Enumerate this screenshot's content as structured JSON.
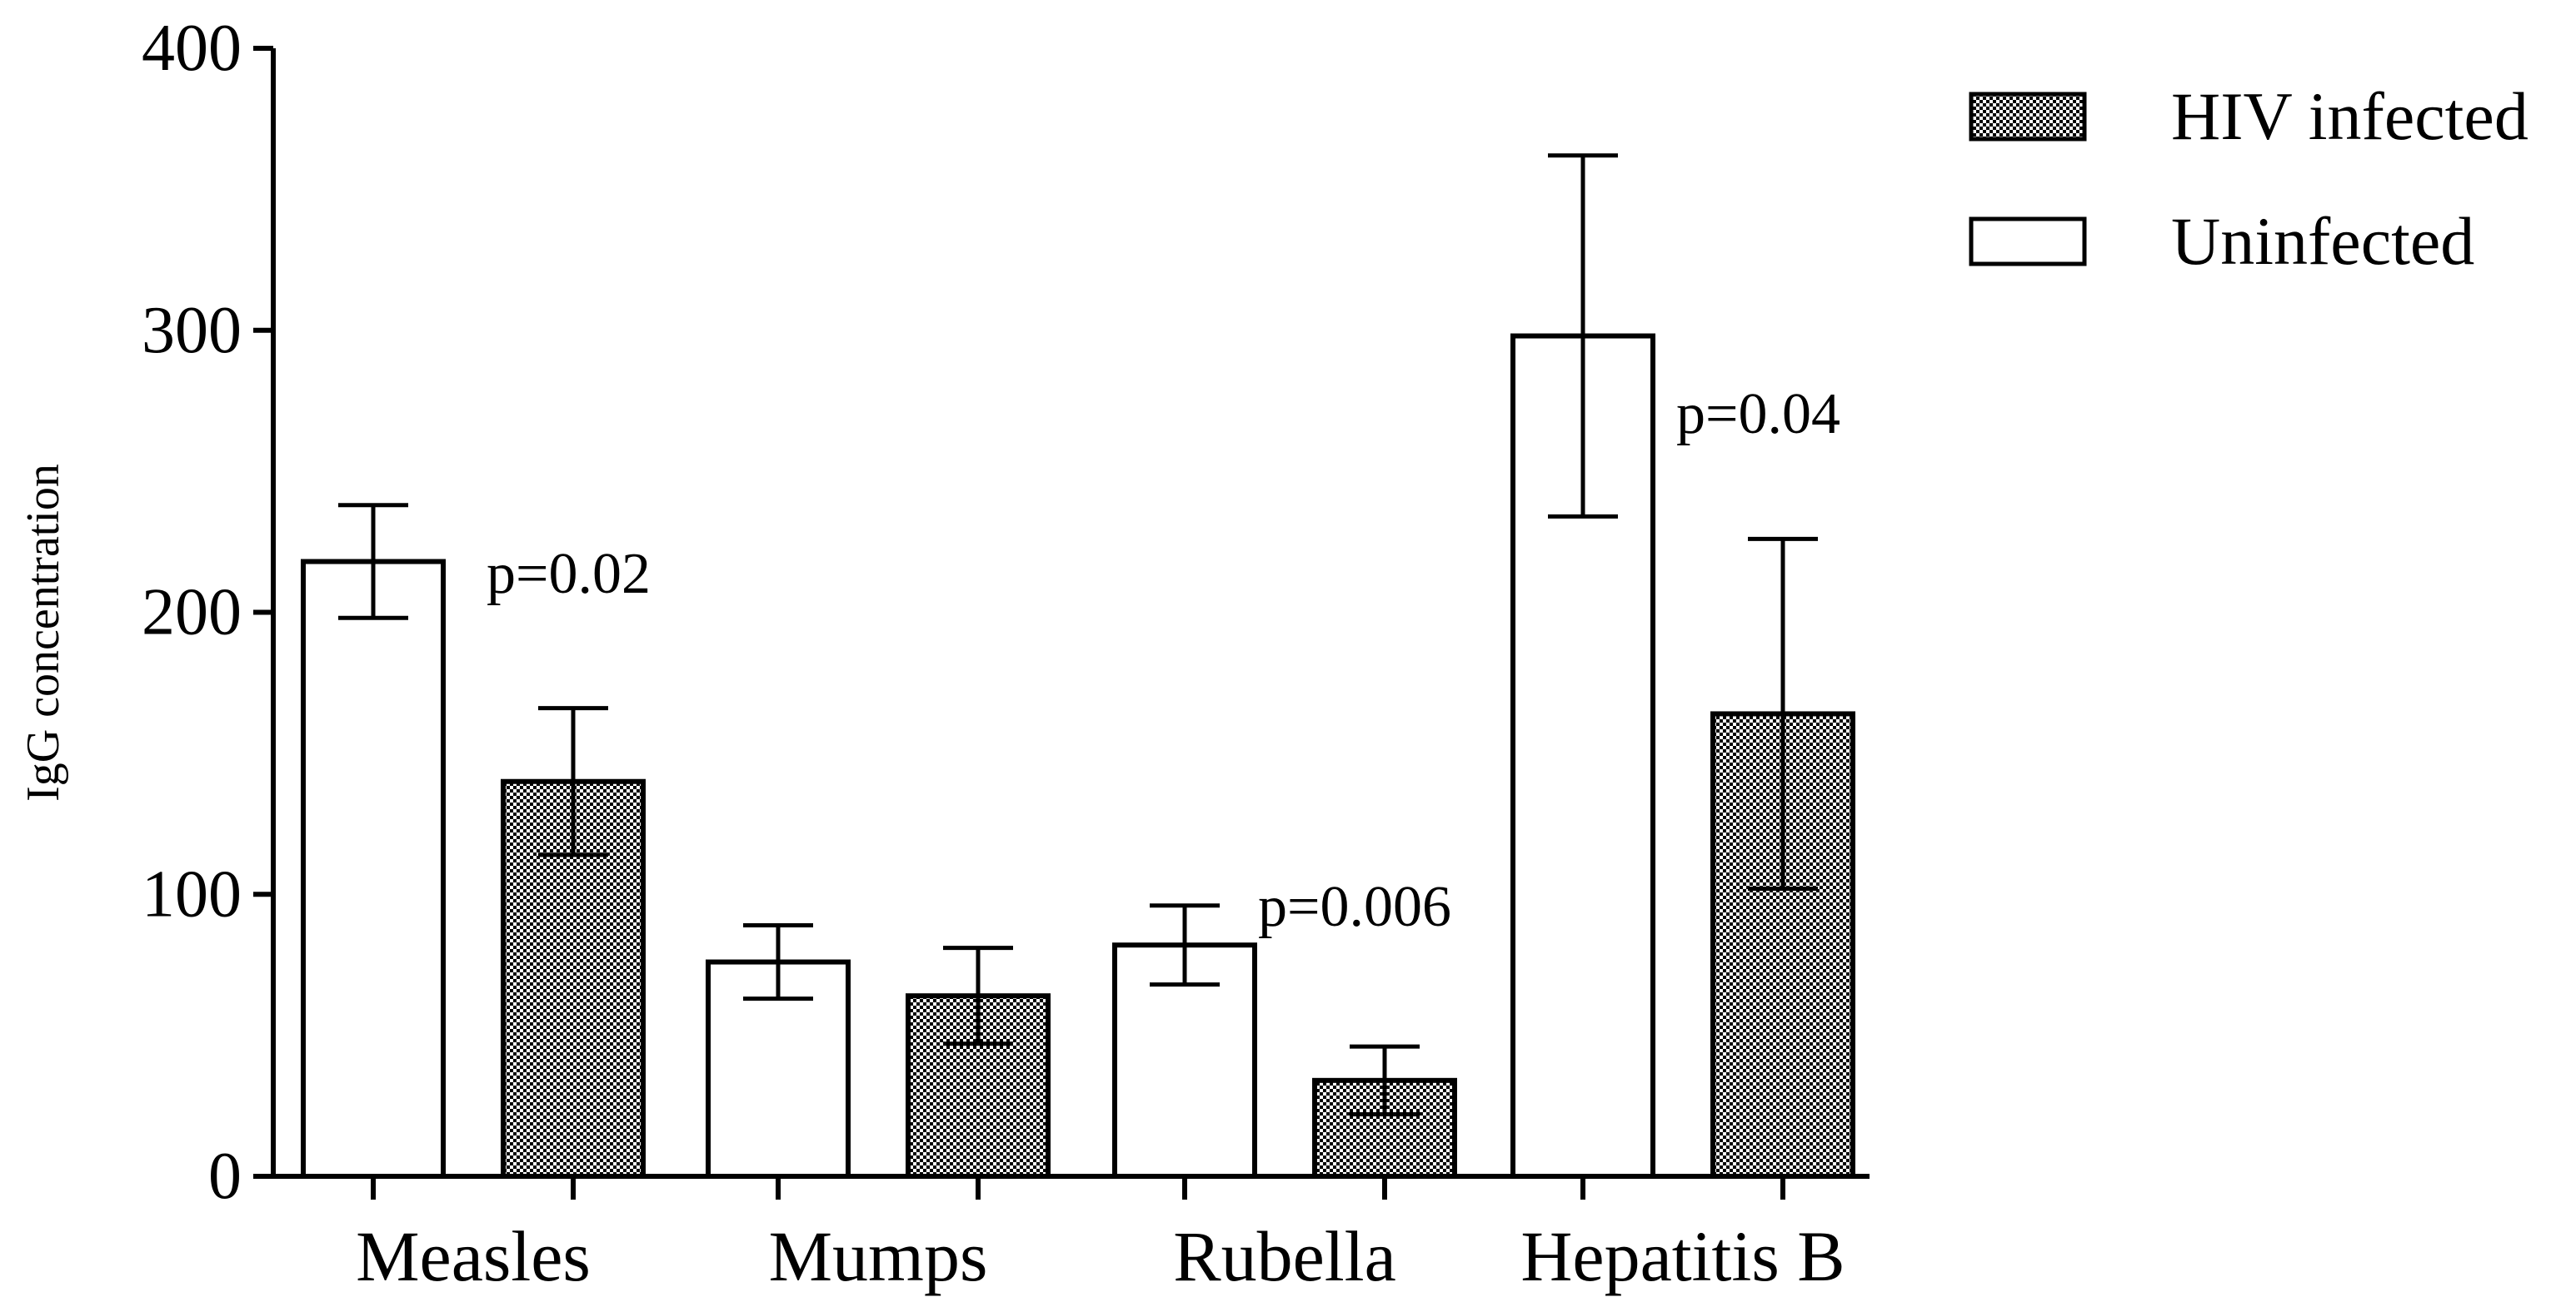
{
  "chart_data": {
    "type": "bar",
    "title": "",
    "xlabel": "",
    "ylabel": "IgG concentration",
    "ylim": [
      0,
      400
    ],
    "yticks": [
      0,
      100,
      200,
      300,
      400
    ],
    "categories": [
      "Measles",
      "Mumps",
      "Rubella",
      "Hepatitis B"
    ],
    "series": [
      {
        "name": "Uninfected",
        "pattern": "white",
        "values": [
          218,
          76,
          82,
          298
        ],
        "errors": [
          20,
          13,
          14,
          64
        ]
      },
      {
        "name": "HIV infected",
        "pattern": "checker",
        "values": [
          140,
          64,
          34,
          164
        ],
        "errors": [
          26,
          17,
          12,
          62
        ]
      }
    ],
    "legend_order": [
      "HIV infected",
      "Uninfected"
    ],
    "legend_position": "top-right",
    "annotations": [
      {
        "text": "p=0.02",
        "category": "Measles"
      },
      {
        "text": "p=0.006",
        "category": "Rubella"
      },
      {
        "text": "p=0.04",
        "category": "Hepatitis B"
      }
    ],
    "colors": {
      "axis": "#000000",
      "bar_fill": "#ffffff",
      "pattern_dark": "#000000"
    }
  }
}
